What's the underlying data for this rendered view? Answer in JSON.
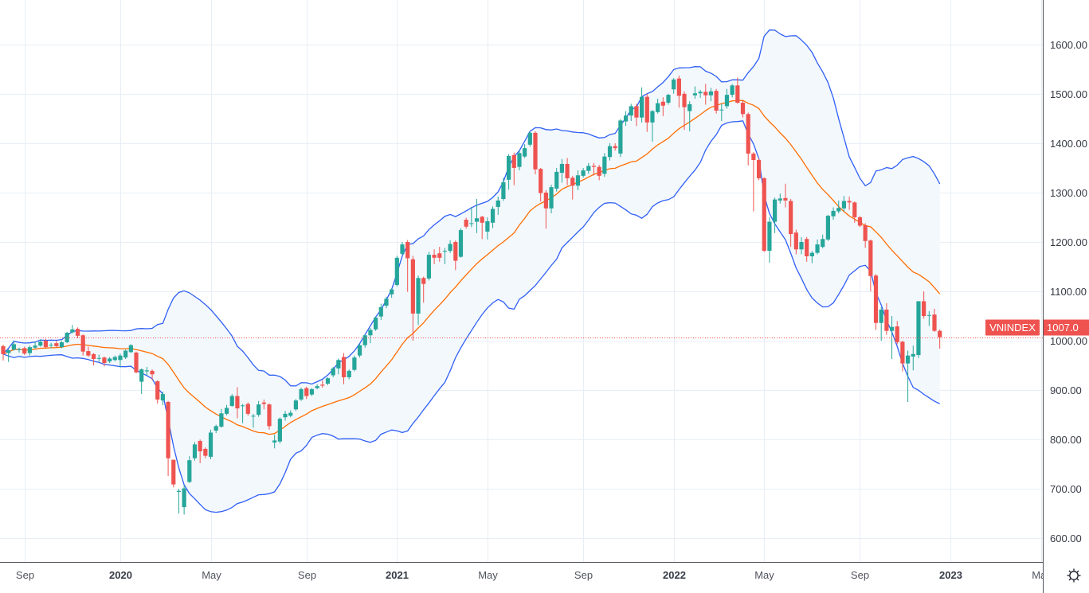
{
  "chart_data": {
    "type": "candlestick",
    "symbol": "VNINDEX",
    "last_price_label": "1007.0",
    "last_price": 1007,
    "interval": "weekly",
    "ylim": [
      552,
      1690
    ],
    "grid": true,
    "colors": {
      "up": "#26a69a",
      "down": "#ef5350",
      "band_line": "#2f5ff5",
      "basis_line": "#ff6d00",
      "band_fill": "#f3f8fd",
      "grid": "#e8eef5",
      "last_price": "#ef5350"
    },
    "indicators": {
      "bollinger_bands": true
    },
    "y_ticks": [
      {
        "value": 600,
        "label": "600.00"
      },
      {
        "value": 700,
        "label": "700.00"
      },
      {
        "value": 800,
        "label": "800.00"
      },
      {
        "value": 900,
        "label": "900.00"
      },
      {
        "value": 1000,
        "label": "1000.00"
      },
      {
        "value": 1100,
        "label": "1100.00"
      },
      {
        "value": 1200,
        "label": "1200.00"
      },
      {
        "value": 1300,
        "label": "1300.00"
      },
      {
        "value": 1400,
        "label": "1400.00"
      },
      {
        "value": 1500,
        "label": "1500.00"
      },
      {
        "value": 1600,
        "label": "1600.00"
      }
    ],
    "x_ticks": [
      {
        "date": "2019-09-01",
        "label": "Sep",
        "bold": false
      },
      {
        "date": "2020-01-01",
        "label": "2020",
        "bold": true
      },
      {
        "date": "2020-05-01",
        "label": "May",
        "bold": false
      },
      {
        "date": "2020-09-01",
        "label": "Sep",
        "bold": false
      },
      {
        "date": "2021-01-01",
        "label": "2021",
        "bold": true
      },
      {
        "date": "2021-05-01",
        "label": "May",
        "bold": false
      },
      {
        "date": "2021-09-01",
        "label": "Sep",
        "bold": false
      },
      {
        "date": "2022-01-01",
        "label": "2022",
        "bold": true
      },
      {
        "date": "2022-05-01",
        "label": "May",
        "bold": false
      },
      {
        "date": "2022-09-01",
        "label": "Sep",
        "bold": false
      },
      {
        "date": "2023-01-01",
        "label": "2023",
        "bold": true
      },
      {
        "date": "2023-05-01",
        "label": "May",
        "bold": false
      }
    ],
    "columns": [
      "date",
      "open",
      "high",
      "low",
      "close"
    ],
    "candles": [
      [
        "2019-08-05",
        989,
        992,
        960,
        973
      ],
      [
        "2019-08-12",
        975,
        983,
        957,
        981
      ],
      [
        "2019-08-19",
        982,
        1001,
        980,
        993
      ],
      [
        "2019-08-26",
        981,
        986,
        976,
        983
      ],
      [
        "2019-09-02",
        985,
        988,
        971,
        974
      ],
      [
        "2019-09-09",
        975,
        990,
        970,
        987
      ],
      [
        "2019-09-16",
        986,
        998,
        984,
        990
      ],
      [
        "2019-09-23",
        990,
        1003,
        988,
        998
      ],
      [
        "2019-09-30",
        1000,
        1004,
        985,
        987
      ],
      [
        "2019-10-07",
        991,
        996,
        985,
        992
      ],
      [
        "2019-10-14",
        995,
        1000,
        987,
        989
      ],
      [
        "2019-10-21",
        987,
        999,
        985,
        997
      ],
      [
        "2019-10-28",
        997,
        1018,
        995,
        1016
      ],
      [
        "2019-11-04",
        1017,
        1032,
        1015,
        1023
      ],
      [
        "2019-11-11",
        1024,
        1027,
        1005,
        1010
      ],
      [
        "2019-11-18",
        1011,
        1013,
        970,
        978
      ],
      [
        "2019-11-25",
        979,
        988,
        967,
        970
      ],
      [
        "2019-12-02",
        973,
        975,
        950,
        963
      ],
      [
        "2019-12-09",
        964,
        972,
        958,
        965
      ],
      [
        "2019-12-16",
        966,
        968,
        948,
        955
      ],
      [
        "2019-12-23",
        958,
        967,
        955,
        964
      ],
      [
        "2019-12-30",
        961,
        970,
        958,
        967
      ],
      [
        "2020-01-06",
        961,
        974,
        946,
        970
      ],
      [
        "2020-01-13",
        966,
        982,
        963,
        980
      ],
      [
        "2020-01-20",
        977,
        993,
        975,
        991
      ],
      [
        "2020-01-27",
        976,
        978,
        934,
        936
      ],
      [
        "2020-02-03",
        917,
        944,
        892,
        942
      ],
      [
        "2020-02-10",
        938,
        947,
        930,
        940
      ],
      [
        "2020-02-17",
        939,
        942,
        920,
        932
      ],
      [
        "2020-02-24",
        918,
        920,
        873,
        881
      ],
      [
        "2020-03-02",
        879,
        897,
        870,
        892
      ],
      [
        "2020-03-09",
        876,
        878,
        726,
        762
      ],
      [
        "2020-03-16",
        759,
        759,
        703,
        709
      ],
      [
        "2020-03-23",
        694,
        700,
        650,
        696
      ],
      [
        "2020-03-30",
        663,
        708,
        648,
        701
      ],
      [
        "2020-04-06",
        714,
        766,
        712,
        758
      ],
      [
        "2020-04-13",
        762,
        795,
        757,
        790
      ],
      [
        "2020-04-20",
        797,
        800,
        752,
        776
      ],
      [
        "2020-04-27",
        781,
        784,
        762,
        767
      ],
      [
        "2020-05-04",
        765,
        820,
        760,
        814
      ],
      [
        "2020-05-11",
        818,
        830,
        813,
        827
      ],
      [
        "2020-05-18",
        826,
        862,
        824,
        853
      ],
      [
        "2020-05-25",
        852,
        870,
        849,
        864
      ],
      [
        "2020-06-01",
        868,
        892,
        866,
        888
      ],
      [
        "2020-06-08",
        888,
        906,
        843,
        863
      ],
      [
        "2020-06-15",
        868,
        872,
        833,
        869
      ],
      [
        "2020-06-22",
        872,
        875,
        848,
        852
      ],
      [
        "2020-06-29",
        848,
        852,
        824,
        848
      ],
      [
        "2020-07-06",
        850,
        878,
        846,
        871
      ],
      [
        "2020-07-13",
        875,
        881,
        861,
        872
      ],
      [
        "2020-07-20",
        871,
        873,
        820,
        827
      ],
      [
        "2020-07-27",
        794,
        810,
        782,
        798
      ],
      [
        "2020-08-03",
        796,
        845,
        792,
        842
      ],
      [
        "2020-08-10",
        845,
        858,
        838,
        852
      ],
      [
        "2020-08-17",
        848,
        859,
        845,
        854
      ],
      [
        "2020-08-24",
        861,
        882,
        858,
        879
      ],
      [
        "2020-08-31",
        881,
        905,
        878,
        902
      ],
      [
        "2020-09-07",
        904,
        907,
        882,
        888
      ],
      [
        "2020-09-14",
        891,
        904,
        888,
        902
      ],
      [
        "2020-09-21",
        904,
        912,
        902,
        908
      ],
      [
        "2020-09-28",
        911,
        920,
        905,
        909
      ],
      [
        "2020-10-05",
        913,
        926,
        910,
        924
      ],
      [
        "2020-10-12",
        930,
        947,
        926,
        944
      ],
      [
        "2020-10-19",
        944,
        964,
        932,
        961
      ],
      [
        "2020-10-26",
        967,
        975,
        912,
        926
      ],
      [
        "2020-11-02",
        926,
        942,
        922,
        939
      ],
      [
        "2020-11-09",
        941,
        970,
        938,
        966
      ],
      [
        "2020-11-16",
        970,
        993,
        966,
        991
      ],
      [
        "2020-11-23",
        991,
        1013,
        986,
        1011
      ],
      [
        "2020-11-30",
        1011,
        1026,
        995,
        1022
      ],
      [
        "2020-12-07",
        1023,
        1049,
        1020,
        1047
      ],
      [
        "2020-12-14",
        1049,
        1075,
        1042,
        1068
      ],
      [
        "2020-12-21",
        1071,
        1089,
        1066,
        1085
      ],
      [
        "2020-12-28",
        1094,
        1106,
        1087,
        1104
      ],
      [
        "2021-01-04",
        1113,
        1172,
        1110,
        1168
      ],
      [
        "2021-01-11",
        1176,
        1200,
        1173,
        1195
      ],
      [
        "2021-01-18",
        1200,
        1204,
        1099,
        1167
      ],
      [
        "2021-01-25",
        1165,
        1172,
        1000,
        1055
      ],
      [
        "2021-02-01",
        1055,
        1132,
        1032,
        1127
      ],
      [
        "2021-02-08",
        1127,
        1130,
        1077,
        1115
      ],
      [
        "2021-02-15",
        1126,
        1180,
        1122,
        1174
      ],
      [
        "2021-02-22",
        1174,
        1185,
        1155,
        1168
      ],
      [
        "2021-03-01",
        1177,
        1190,
        1160,
        1168
      ],
      [
        "2021-03-08",
        1181,
        1188,
        1155,
        1182
      ],
      [
        "2021-03-15",
        1182,
        1203,
        1178,
        1196
      ],
      [
        "2021-03-22",
        1200,
        1203,
        1143,
        1162
      ],
      [
        "2021-03-29",
        1170,
        1228,
        1168,
        1224
      ],
      [
        "2021-04-05",
        1245,
        1249,
        1227,
        1231
      ],
      [
        "2021-04-12",
        1237,
        1271,
        1230,
        1238
      ],
      [
        "2021-04-19",
        1241,
        1287,
        1218,
        1248
      ],
      [
        "2021-04-26",
        1251,
        1253,
        1206,
        1239
      ],
      [
        "2021-05-03",
        1221,
        1250,
        1205,
        1242
      ],
      [
        "2021-05-10",
        1239,
        1272,
        1228,
        1267
      ],
      [
        "2021-05-17",
        1271,
        1292,
        1255,
        1284
      ],
      [
        "2021-05-24",
        1287,
        1330,
        1283,
        1321
      ],
      [
        "2021-05-31",
        1326,
        1378,
        1306,
        1374
      ],
      [
        "2021-06-07",
        1376,
        1381,
        1315,
        1350
      ],
      [
        "2021-06-14",
        1352,
        1385,
        1345,
        1380
      ],
      [
        "2021-06-21",
        1373,
        1398,
        1370,
        1390
      ],
      [
        "2021-06-28",
        1397,
        1424,
        1393,
        1421
      ],
      [
        "2021-07-05",
        1421,
        1424,
        1337,
        1347
      ],
      [
        "2021-07-12",
        1348,
        1350,
        1282,
        1299
      ],
      [
        "2021-07-19",
        1300,
        1305,
        1227,
        1268
      ],
      [
        "2021-07-26",
        1268,
        1316,
        1258,
        1311
      ],
      [
        "2021-08-02",
        1308,
        1350,
        1302,
        1342
      ],
      [
        "2021-08-09",
        1340,
        1368,
        1320,
        1358
      ],
      [
        "2021-08-16",
        1358,
        1370,
        1315,
        1329
      ],
      [
        "2021-08-23",
        1330,
        1334,
        1286,
        1314
      ],
      [
        "2021-08-30",
        1314,
        1345,
        1305,
        1335
      ],
      [
        "2021-09-06",
        1334,
        1350,
        1330,
        1345
      ],
      [
        "2021-09-13",
        1344,
        1360,
        1338,
        1354
      ],
      [
        "2021-09-20",
        1354,
        1360,
        1335,
        1352
      ],
      [
        "2021-09-27",
        1352,
        1356,
        1325,
        1334
      ],
      [
        "2021-10-04",
        1338,
        1380,
        1332,
        1373
      ],
      [
        "2021-10-11",
        1372,
        1400,
        1365,
        1394
      ],
      [
        "2021-10-18",
        1394,
        1400,
        1385,
        1390
      ],
      [
        "2021-10-25",
        1379,
        1449,
        1372,
        1446
      ],
      [
        "2021-11-01",
        1444,
        1465,
        1435,
        1456
      ],
      [
        "2021-11-08",
        1456,
        1480,
        1445,
        1475
      ],
      [
        "2021-11-15",
        1475,
        1480,
        1435,
        1452
      ],
      [
        "2021-11-22",
        1452,
        1513,
        1442,
        1494
      ],
      [
        "2021-11-29",
        1494,
        1500,
        1423,
        1442
      ],
      [
        "2021-12-06",
        1442,
        1467,
        1403,
        1465
      ],
      [
        "2021-12-13",
        1463,
        1490,
        1460,
        1481
      ],
      [
        "2021-12-20",
        1484,
        1493,
        1455,
        1476
      ],
      [
        "2021-12-27",
        1482,
        1500,
        1478,
        1498
      ],
      [
        "2022-01-03",
        1509,
        1532,
        1500,
        1529
      ],
      [
        "2022-01-10",
        1531,
        1537,
        1472,
        1496
      ],
      [
        "2022-01-17",
        1500,
        1505,
        1427,
        1473
      ],
      [
        "2022-01-24",
        1465,
        1485,
        1424,
        1479
      ],
      [
        "2022-01-31",
        1497,
        1515,
        1490,
        1501
      ],
      [
        "2022-02-07",
        1501,
        1508,
        1492,
        1504
      ],
      [
        "2022-02-14",
        1504,
        1520,
        1478,
        1497
      ],
      [
        "2022-02-21",
        1497,
        1512,
        1485,
        1505
      ],
      [
        "2022-02-28",
        1506,
        1510,
        1460,
        1466
      ],
      [
        "2022-03-07",
        1467,
        1480,
        1445,
        1468
      ],
      [
        "2022-03-14",
        1475,
        1510,
        1470,
        1498
      ],
      [
        "2022-03-21",
        1498,
        1520,
        1493,
        1517
      ],
      [
        "2022-03-28",
        1517,
        1533,
        1480,
        1482
      ],
      [
        "2022-04-04",
        1482,
        1486,
        1452,
        1459
      ],
      [
        "2022-04-11",
        1459,
        1462,
        1355,
        1379
      ],
      [
        "2022-04-18",
        1379,
        1382,
        1262,
        1366
      ],
      [
        "2022-04-25",
        1366,
        1370,
        1325,
        1329
      ],
      [
        "2022-05-02",
        1329,
        1331,
        1180,
        1182
      ],
      [
        "2022-05-09",
        1182,
        1250,
        1158,
        1241
      ],
      [
        "2022-05-16",
        1241,
        1290,
        1218,
        1286
      ],
      [
        "2022-05-23",
        1284,
        1298,
        1278,
        1288
      ],
      [
        "2022-05-30",
        1289,
        1318,
        1270,
        1284
      ],
      [
        "2022-06-06",
        1283,
        1287,
        1190,
        1216
      ],
      [
        "2022-06-13",
        1219,
        1225,
        1175,
        1185
      ],
      [
        "2022-06-20",
        1185,
        1210,
        1175,
        1200
      ],
      [
        "2022-06-27",
        1206,
        1210,
        1160,
        1171
      ],
      [
        "2022-07-04",
        1171,
        1182,
        1157,
        1178
      ],
      [
        "2022-07-11",
        1178,
        1205,
        1175,
        1195
      ],
      [
        "2022-07-18",
        1190,
        1215,
        1187,
        1206
      ],
      [
        "2022-07-25",
        1205,
        1255,
        1202,
        1253
      ],
      [
        "2022-08-01",
        1252,
        1270,
        1245,
        1263
      ],
      [
        "2022-08-08",
        1262,
        1284,
        1258,
        1269
      ],
      [
        "2022-08-15",
        1268,
        1293,
        1262,
        1283
      ],
      [
        "2022-08-22",
        1283,
        1292,
        1265,
        1280
      ],
      [
        "2022-08-29",
        1280,
        1282,
        1239,
        1250
      ],
      [
        "2022-09-05",
        1250,
        1253,
        1230,
        1233
      ],
      [
        "2022-09-12",
        1234,
        1238,
        1188,
        1202
      ],
      [
        "2022-09-19",
        1203,
        1205,
        1100,
        1131
      ],
      [
        "2022-09-26",
        1132,
        1135,
        1022,
        1036
      ],
      [
        "2022-10-03",
        1036,
        1068,
        1000,
        1063
      ],
      [
        "2022-10-10",
        1063,
        1076,
        1012,
        1020
      ],
      [
        "2022-10-17",
        1020,
        1050,
        963,
        1028
      ],
      [
        "2022-10-24",
        1029,
        1040,
        993,
        997
      ],
      [
        "2022-10-31",
        998,
        1000,
        938,
        954
      ],
      [
        "2022-11-07",
        954,
        980,
        876,
        970
      ],
      [
        "2022-11-14",
        968,
        990,
        940,
        973
      ],
      [
        "2022-11-21",
        971,
        1080,
        965,
        1080
      ],
      [
        "2022-11-28",
        1080,
        1100,
        1045,
        1050
      ],
      [
        "2022-12-05",
        1051,
        1060,
        1030,
        1052
      ],
      [
        "2022-12-12",
        1053,
        1065,
        1018,
        1020
      ],
      [
        "2022-12-19",
        1020,
        1023,
        984,
        1007
      ]
    ]
  },
  "toolbar": {
    "settings_icon": "gear-icon"
  }
}
